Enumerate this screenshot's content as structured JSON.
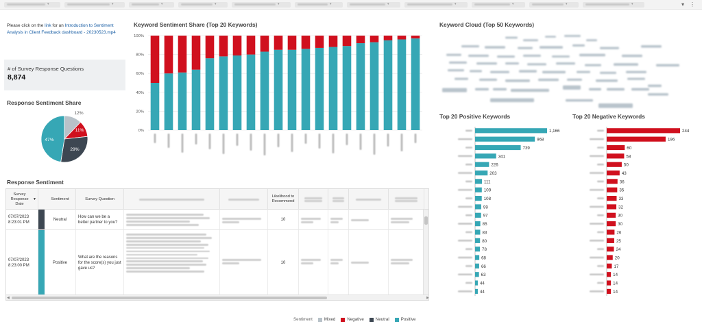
{
  "colors": {
    "mixed": "#b8c2c9",
    "negative": "#d0101e",
    "neutral": "#3d4752",
    "positive": "#36a7b5"
  },
  "intro": {
    "prefix": "Please click on the ",
    "link1": "link",
    "middle": " for an ",
    "link2": "Introduction to Sentiment Analysis in Client Feedback dashboard - 20230523.mp4"
  },
  "kpi": {
    "label": "# of Survey Response Questions",
    "value": "8,874"
  },
  "titles": {
    "pie": "Response Sentiment Share",
    "stacked": "Keyword Sentiment Share (Top 20 Keywords)",
    "cloud": "Keyword Cloud (Top 50 Keywords)",
    "positive": "Top 20 Positive Keywords",
    "negative": "Top 20 Negative Keywords",
    "table": "Response Sentiment"
  },
  "table": {
    "headers": {
      "date": "Survey Response Date",
      "sentiment": "Sentiment",
      "question": "Survey Question",
      "likelihood": "Likelihood to Recommend"
    },
    "rows": [
      {
        "date": "07/07/2023 8:23:01 PM",
        "sentiment": "Neutral",
        "question": "How can we be a better partner to you?",
        "likelihood": "10"
      },
      {
        "date": "07/07/2023 8:23:00 PM",
        "sentiment": "Positive",
        "question": "What are the reasons for the score(s) you just gave us?",
        "likelihood": "10"
      }
    ]
  },
  "legend": {
    "title": "Sentiment",
    "items": [
      "Mixed",
      "Negative",
      "Neutral",
      "Positive"
    ]
  },
  "chart_data": [
    {
      "type": "pie",
      "title": "Response Sentiment Share",
      "labels": [
        "Positive",
        "Mixed",
        "Negative",
        "Neutral"
      ],
      "values": [
        47,
        12,
        11,
        29
      ],
      "value_labels": [
        "47%",
        "12%",
        "11%",
        "29%"
      ]
    },
    {
      "type": "bar",
      "stacked": true,
      "percent": true,
      "title": "Keyword Sentiment Share (Top 20 Keywords)",
      "categories_count": 20,
      "ylim": [
        0,
        100
      ],
      "yticks": [
        "0%",
        "20%",
        "40%",
        "60%",
        "80%",
        "100%"
      ],
      "series": [
        {
          "name": "Positive",
          "values": [
            50,
            60,
            61,
            64,
            76,
            78,
            79,
            80,
            83,
            85,
            85,
            86,
            87,
            88,
            89,
            92,
            93,
            95,
            96,
            97
          ]
        },
        {
          "name": "Negative",
          "values": [
            50,
            40,
            39,
            36,
            24,
            22,
            21,
            20,
            17,
            15,
            15,
            14,
            13,
            12,
            11,
            8,
            7,
            5,
            4,
            3
          ]
        }
      ]
    },
    {
      "type": "bar",
      "orientation": "horizontal",
      "title": "Top 20 Positive Keywords",
      "values": [
        1166,
        968,
        739,
        341,
        226,
        203,
        111,
        109,
        108,
        99,
        97,
        85,
        83,
        80,
        78,
        68,
        66,
        63,
        44,
        44
      ],
      "value_labels": [
        "1,166",
        "968",
        "739",
        "341",
        "226",
        "203",
        "111",
        "109",
        "108",
        "99",
        "97",
        "85",
        "83",
        "80",
        "78",
        "68",
        "66",
        "63",
        "44",
        "44"
      ]
    },
    {
      "type": "bar",
      "orientation": "horizontal",
      "title": "Top 20 Negative Keywords",
      "values": [
        244,
        196,
        60,
        58,
        50,
        43,
        36,
        35,
        33,
        32,
        30,
        30,
        26,
        25,
        24,
        20,
        17,
        14,
        14,
        14
      ],
      "value_labels": [
        "244",
        "196",
        "60",
        "58",
        "50",
        "43",
        "36",
        "35",
        "33",
        "32",
        "30",
        "30",
        "26",
        "25",
        "24",
        "20",
        "17",
        "14",
        "14",
        "14"
      ]
    }
  ]
}
